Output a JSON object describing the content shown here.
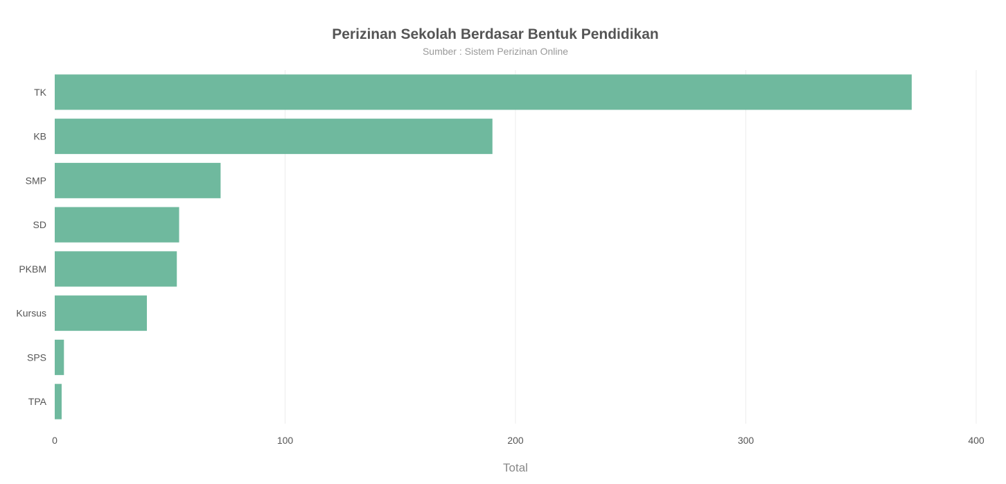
{
  "chart_data": {
    "type": "bar",
    "orientation": "horizontal",
    "title": "Perizinan Sekolah Berdasar Bentuk Pendidikan",
    "subtitle": "Sumber : Sistem Perizinan Online",
    "xlabel": "Total",
    "ylabel": "",
    "categories": [
      "TK",
      "KB",
      "SMP",
      "SD",
      "PKBM",
      "Kursus",
      "SPS",
      "TPA"
    ],
    "values": [
      372,
      190,
      72,
      54,
      53,
      40,
      4,
      3
    ],
    "xlim": [
      0,
      400
    ],
    "xticks": [
      0,
      100,
      200,
      300,
      400
    ],
    "grid": "vertical",
    "bar_color": "#6fb99e"
  }
}
